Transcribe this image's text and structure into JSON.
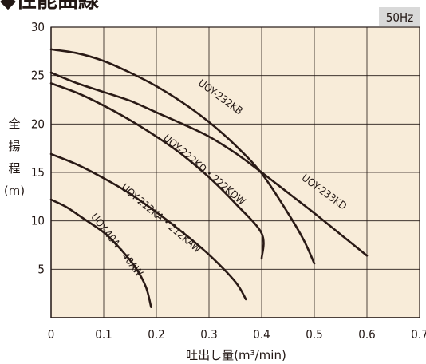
{
  "header": {
    "title": "◆性能曲線",
    "badge": "50Hz"
  },
  "colors": {
    "plot_bg": "#f8ecd9",
    "grid": "#231815",
    "curve": "#2a1a16",
    "badge_bg": "#d9d9d9"
  },
  "chart_data": {
    "type": "line",
    "title": "◆性能曲線",
    "xlabel": "吐出し量(m³/min)",
    "ylabel": [
      "全",
      "揚",
      "程",
      "(m)"
    ],
    "xlim": [
      0,
      0.7
    ],
    "ylim": [
      0,
      30
    ],
    "x_ticks": [
      "0",
      "0.1",
      "0.2",
      "0.3",
      "0.4",
      "0.5",
      "0.6",
      "0.7"
    ],
    "y_ticks": [
      "5",
      "10",
      "15",
      "20",
      "25",
      "30"
    ],
    "grid": true,
    "series": [
      {
        "name": "UOY-233KD",
        "label_at": [
          0.515,
          12.7
        ],
        "label_angle": 36,
        "points": [
          [
            0,
            25.3
          ],
          [
            0.05,
            24.2
          ],
          [
            0.1,
            23.3
          ],
          [
            0.15,
            22.4
          ],
          [
            0.2,
            21.2
          ],
          [
            0.25,
            20.0
          ],
          [
            0.3,
            18.7
          ],
          [
            0.35,
            17.0
          ],
          [
            0.4,
            15.0
          ],
          [
            0.45,
            12.9
          ],
          [
            0.5,
            10.8
          ],
          [
            0.55,
            8.6
          ],
          [
            0.6,
            6.4
          ]
        ]
      },
      {
        "name": "UOY-232KB",
        "label_at": [
          0.318,
          22.5
        ],
        "label_angle": 36,
        "points": [
          [
            0,
            27.7
          ],
          [
            0.05,
            27.3
          ],
          [
            0.1,
            26.5
          ],
          [
            0.15,
            25.3
          ],
          [
            0.2,
            23.9
          ],
          [
            0.25,
            22.2
          ],
          [
            0.3,
            20.2
          ],
          [
            0.35,
            17.8
          ],
          [
            0.4,
            14.9
          ],
          [
            0.45,
            10.8
          ],
          [
            0.48,
            8.0
          ],
          [
            0.5,
            5.6
          ]
        ]
      },
      {
        "name": "UOY-222KD・222KDW",
        "label_at": [
          0.287,
          15.0
        ],
        "label_angle": 40,
        "points": [
          [
            0,
            24.2
          ],
          [
            0.05,
            23.2
          ],
          [
            0.1,
            21.9
          ],
          [
            0.15,
            20.4
          ],
          [
            0.2,
            18.7
          ],
          [
            0.25,
            16.8
          ],
          [
            0.3,
            14.5
          ],
          [
            0.35,
            11.8
          ],
          [
            0.4,
            8.7
          ],
          [
            0.4,
            6.1
          ]
        ]
      },
      {
        "name": "UOY-212KA・212KAW",
        "label_at": [
          0.205,
          10.0
        ],
        "label_angle": 40,
        "points": [
          [
            0,
            16.9
          ],
          [
            0.05,
            15.8
          ],
          [
            0.1,
            14.4
          ],
          [
            0.15,
            12.8
          ],
          [
            0.2,
            10.9
          ],
          [
            0.25,
            8.8
          ],
          [
            0.3,
            6.5
          ],
          [
            0.35,
            3.7
          ],
          [
            0.37,
            1.9
          ]
        ]
      },
      {
        "name": "UOY-40A・40AW",
        "label_at": [
          0.12,
          7.3
        ],
        "label_angle": 52,
        "points": [
          [
            0,
            12.2
          ],
          [
            0.03,
            11.4
          ],
          [
            0.06,
            10.3
          ],
          [
            0.1,
            8.8
          ],
          [
            0.13,
            7.2
          ],
          [
            0.16,
            5.2
          ],
          [
            0.18,
            3.2
          ],
          [
            0.19,
            1.1
          ]
        ]
      }
    ]
  }
}
